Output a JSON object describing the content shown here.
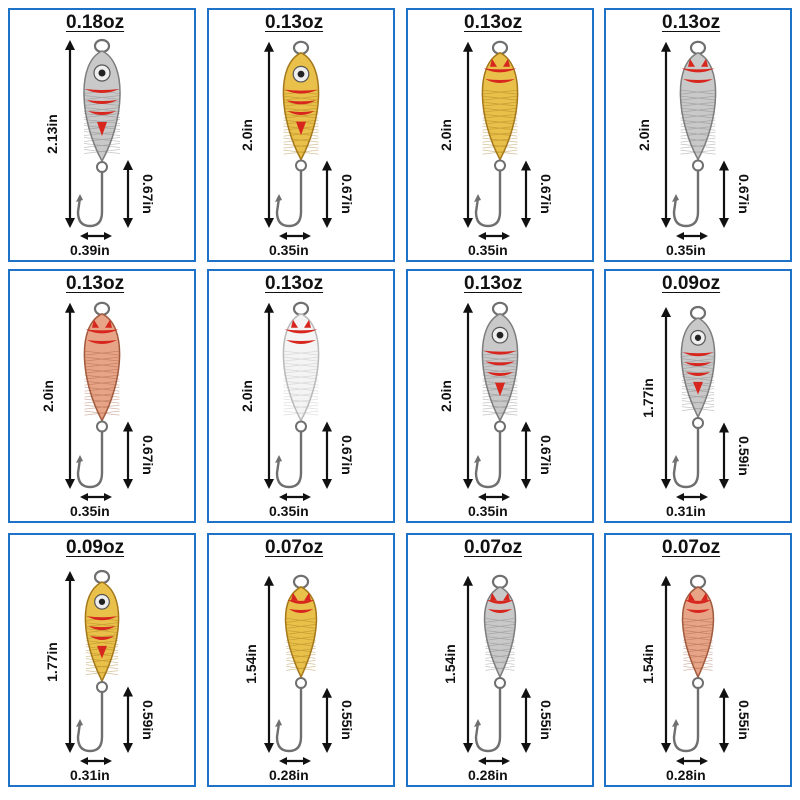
{
  "lures": [
    {
      "weight": "0.18oz",
      "length": "2.13in",
      "hook": "0.67in",
      "width": "0.39in",
      "finish": "silver",
      "colors": {
        "body": "#c9c9c9",
        "dark": "#7d7d7d",
        "accent": "#d7261e"
      },
      "eye": true
    },
    {
      "weight": "0.13oz",
      "length": "2.0in",
      "hook": "0.67in",
      "width": "0.35in",
      "finish": "gold",
      "colors": {
        "body": "#e8c04a",
        "dark": "#a4781a",
        "accent": "#d7261e"
      },
      "eye": true
    },
    {
      "weight": "0.13oz",
      "length": "2.0in",
      "hook": "0.67in",
      "width": "0.35in",
      "finish": "gold",
      "colors": {
        "body": "#e8c04a",
        "dark": "#a4781a",
        "accent": "#d7261e"
      },
      "eye": false
    },
    {
      "weight": "0.13oz",
      "length": "2.0in",
      "hook": "0.67in",
      "width": "0.35in",
      "finish": "silver",
      "colors": {
        "body": "#c9c9c9",
        "dark": "#7d7d7d",
        "accent": "#d7261e"
      },
      "eye": false
    },
    {
      "weight": "0.13oz",
      "length": "2.0in",
      "hook": "0.67in",
      "width": "0.35in",
      "finish": "copper",
      "colors": {
        "body": "#e7a487",
        "dark": "#a15a3d",
        "accent": "#d7261e"
      },
      "eye": false
    },
    {
      "weight": "0.13oz",
      "length": "2.0in",
      "hook": "0.67in",
      "width": "0.35in",
      "finish": "white",
      "colors": {
        "body": "#f4f4f4",
        "dark": "#b9b9b9",
        "accent": "#d7261e"
      },
      "eye": false
    },
    {
      "weight": "0.13oz",
      "length": "2.0in",
      "hook": "0.67in",
      "width": "0.35in",
      "finish": "silver",
      "colors": {
        "body": "#c9c9c9",
        "dark": "#7d7d7d",
        "accent": "#d7261e"
      },
      "eye": true
    },
    {
      "weight": "0.09oz",
      "length": "1.77in",
      "hook": "0.59in",
      "width": "0.31in",
      "finish": "silver",
      "colors": {
        "body": "#c9c9c9",
        "dark": "#7d7d7d",
        "accent": "#d7261e"
      },
      "eye": true
    },
    {
      "weight": "0.09oz",
      "length": "1.77in",
      "hook": "0.59in",
      "width": "0.31in",
      "finish": "gold",
      "colors": {
        "body": "#e8c04a",
        "dark": "#a4781a",
        "accent": "#d7261e"
      },
      "eye": true
    },
    {
      "weight": "0.07oz",
      "length": "1.54in",
      "hook": "0.55in",
      "width": "0.28in",
      "finish": "gold",
      "colors": {
        "body": "#e8c04a",
        "dark": "#a4781a",
        "accent": "#d7261e"
      },
      "eye": false
    },
    {
      "weight": "0.07oz",
      "length": "1.54in",
      "hook": "0.55in",
      "width": "0.28in",
      "finish": "silver",
      "colors": {
        "body": "#c9c9c9",
        "dark": "#7d7d7d",
        "accent": "#d7261e"
      },
      "eye": false
    },
    {
      "weight": "0.07oz",
      "length": "1.54in",
      "hook": "0.55in",
      "width": "0.28in",
      "finish": "copper",
      "colors": {
        "body": "#e7a487",
        "dark": "#a15a3d",
        "accent": "#d7261e"
      },
      "eye": false
    }
  ],
  "colors": {
    "border": "#1e73c8",
    "text": "#111111",
    "hook": "#6f6f6f"
  }
}
